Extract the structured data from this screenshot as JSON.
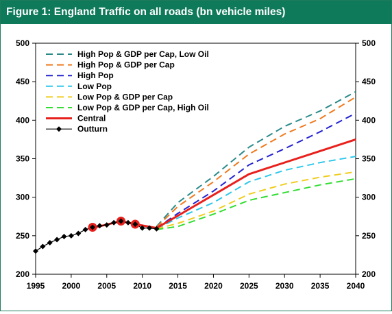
{
  "title": "Figure 1: England Traffic on all roads (bn vehicle miles)",
  "chart_data": {
    "type": "line",
    "title": "Figure 1: England Traffic on all roads (bn vehicle miles)",
    "xlabel": "",
    "ylabel": "",
    "xlim": [
      1995,
      2040
    ],
    "ylim": [
      200,
      500
    ],
    "x_ticks": [
      1995,
      2000,
      2005,
      2010,
      2015,
      2020,
      2025,
      2030,
      2035,
      2040
    ],
    "y_ticks": [
      200,
      250,
      300,
      350,
      400,
      450,
      500
    ],
    "grid": false,
    "legend_position": "top-left",
    "series": [
      {
        "name": "High Pop & GDP per Cap, Low Oil",
        "style": "dashed",
        "color": "#2a8a8a",
        "x": [
          2012,
          2015,
          2020,
          2025,
          2030,
          2035,
          2040
        ],
        "y": [
          262,
          293,
          327,
          365,
          392,
          412,
          437
        ]
      },
      {
        "name": "High Pop & GDP per Cap",
        "style": "dashed",
        "color": "#f07a1e",
        "x": [
          2012,
          2015,
          2020,
          2025,
          2030,
          2035,
          2040
        ],
        "y": [
          261,
          288,
          320,
          356,
          382,
          402,
          430
        ]
      },
      {
        "name": "High Pop",
        "style": "dashed",
        "color": "#2323d0",
        "x": [
          2012,
          2015,
          2020,
          2025,
          2030,
          2035,
          2040
        ],
        "y": [
          260,
          279,
          308,
          342,
          363,
          385,
          409
        ]
      },
      {
        "name": "Low Pop",
        "style": "dashed",
        "color": "#2cc8ea",
        "x": [
          2012,
          2015,
          2020,
          2025,
          2030,
          2035,
          2040
        ],
        "y": [
          259,
          273,
          293,
          320,
          335,
          345,
          353
        ]
      },
      {
        "name": "Low Pop & GDP per Cap",
        "style": "dashed",
        "color": "#f0cc1e",
        "x": [
          2012,
          2015,
          2020,
          2025,
          2030,
          2035,
          2040
        ],
        "y": [
          259,
          266,
          282,
          304,
          317,
          326,
          333
        ]
      },
      {
        "name": "Low Pop & GDP per Cap, High Oil",
        "style": "dashed",
        "color": "#33dd33",
        "x": [
          2012,
          2015,
          2020,
          2025,
          2030,
          2035,
          2040
        ],
        "y": [
          258,
          262,
          278,
          296,
          306,
          316,
          324
        ]
      },
      {
        "name": "Central",
        "style": "solid",
        "color": "#e8201c",
        "x": [
          2003,
          2007,
          2009,
          2012,
          2015,
          2020,
          2025,
          2030,
          2035,
          2040
        ],
        "y": [
          260,
          269,
          265,
          260,
          276,
          303,
          330,
          345,
          360,
          375
        ]
      },
      {
        "name": "Outturn",
        "style": "marker",
        "color": "#000000",
        "x": [
          1995,
          1996,
          1997,
          1998,
          1999,
          2000,
          2001,
          2002,
          2003,
          2004,
          2005,
          2006,
          2007,
          2008,
          2009,
          2010,
          2011,
          2012
        ],
        "y": [
          230,
          236,
          241,
          245,
          249,
          250,
          253,
          258,
          261,
          263,
          264,
          267,
          269,
          267,
          265,
          260,
          260,
          259
        ]
      }
    ],
    "highlight_points": [
      {
        "x": 2003,
        "y": 261
      },
      {
        "x": 2007,
        "y": 269
      },
      {
        "x": 2009,
        "y": 265
      }
    ]
  }
}
